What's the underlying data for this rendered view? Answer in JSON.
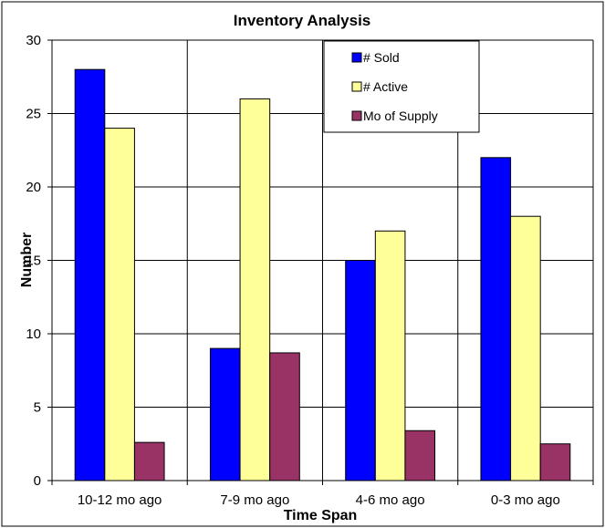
{
  "chart_data": {
    "type": "bar",
    "title": "Inventory Analysis",
    "xlabel": "Time Span",
    "ylabel": "Number",
    "categories": [
      "10-12 mo ago",
      "7-9 mo ago",
      "4-6 mo ago",
      "0-3 mo ago"
    ],
    "series": [
      {
        "name": "# Sold",
        "values": [
          28,
          9,
          15,
          22
        ],
        "color": "#0000FF"
      },
      {
        "name": "# Active",
        "values": [
          24,
          26,
          17,
          18
        ],
        "color": "#FFFF99"
      },
      {
        "name": "Mo of Supply",
        "values": [
          2.6,
          8.7,
          3.4,
          2.5
        ],
        "color": "#993366"
      }
    ],
    "ylim": [
      0,
      30
    ],
    "yticks": [
      "0",
      "5",
      "10",
      "15",
      "20",
      "25",
      "30"
    ],
    "grid": true,
    "legend_position": "top-right"
  }
}
